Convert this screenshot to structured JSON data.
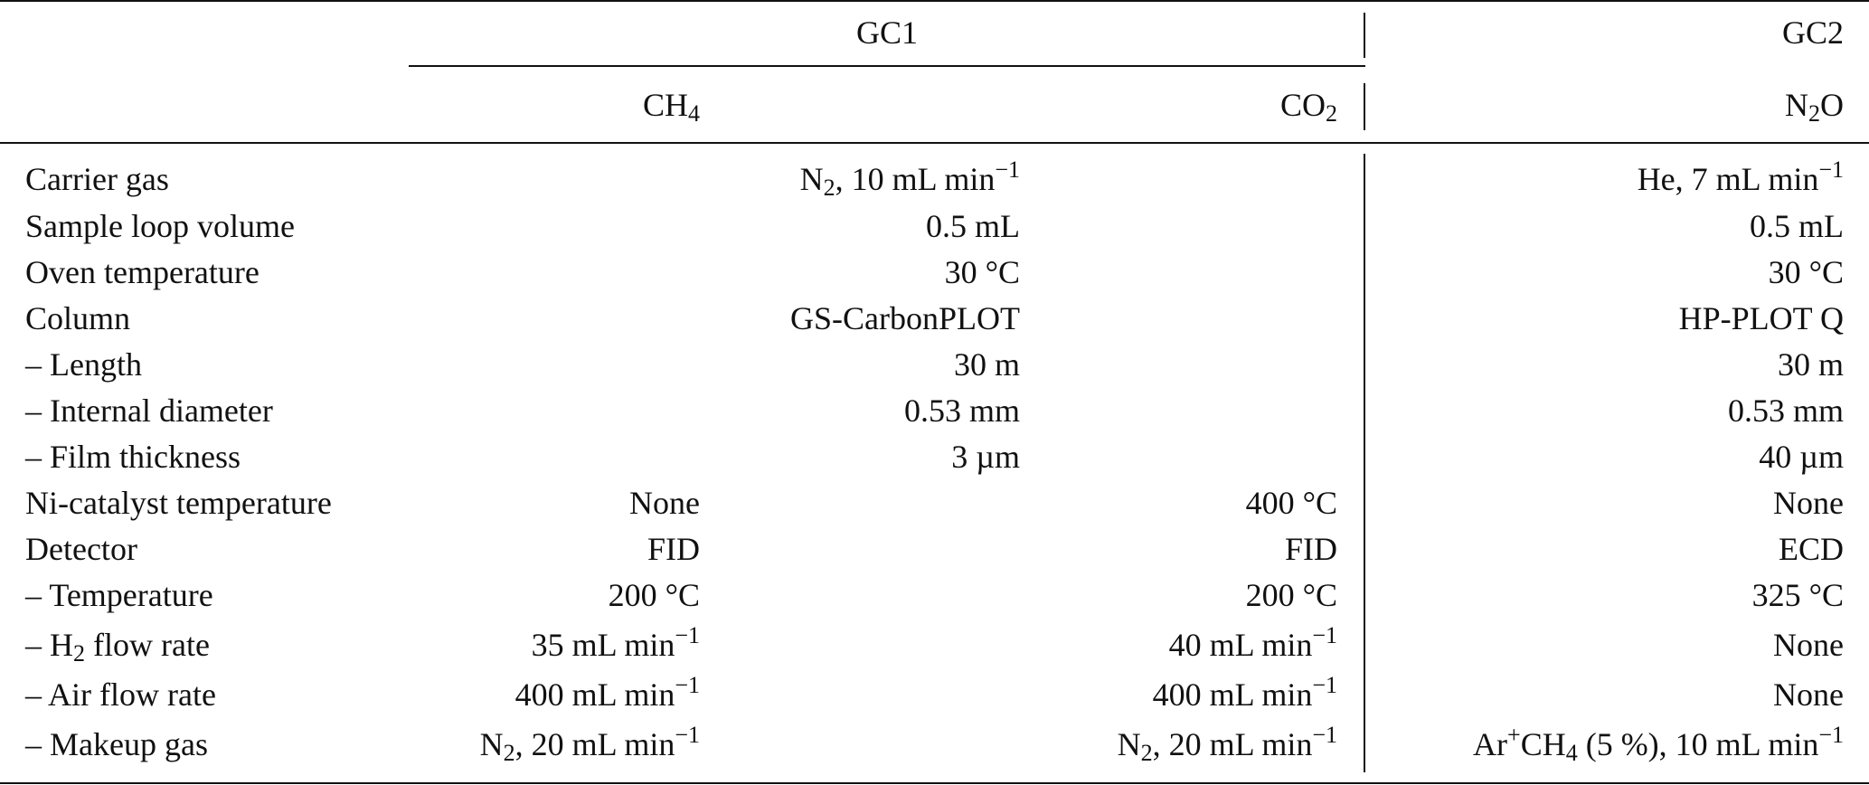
{
  "header": {
    "gc1": "GC1",
    "gc2": "GC2",
    "ch4": {
      "base": "CH",
      "sub": "4"
    },
    "co2": {
      "base": "CO",
      "sub": "2"
    },
    "n2o": {
      "pre": "N",
      "sub": "2",
      "post": "O"
    }
  },
  "rows": [
    {
      "label": "Carrier gas",
      "gc1": {
        "pre": "N",
        "sub": "2",
        "mid": ", 10 mL min",
        "sup": "−1"
      },
      "gc2": {
        "pre": "He, 7 mL min",
        "sup": "−1"
      }
    },
    {
      "label": "Sample loop volume",
      "gc1": "0.5 mL",
      "gc2": "0.5 mL"
    },
    {
      "label": "Oven temperature",
      "gc1": "30 °C",
      "gc2": "30 °C"
    },
    {
      "label": "Column",
      "gc1": "GS-CarbonPLOT",
      "gc2": "HP-PLOT Q"
    },
    {
      "label": "– Length",
      "gc1": "30 m",
      "gc2": "30 m"
    },
    {
      "label": "– Internal diameter",
      "gc1": "0.53 mm",
      "gc2": "0.53 mm"
    },
    {
      "label": "– Film thickness",
      "gc1": "3 µm",
      "gc2": "40 µm"
    },
    {
      "label": "Ni-catalyst temperature",
      "ch4": "None",
      "co2": "400 °C",
      "gc2": "None"
    },
    {
      "label": "Detector",
      "ch4": "FID",
      "co2": "FID",
      "gc2": "ECD"
    },
    {
      "label": "– Temperature",
      "ch4": "200 °C",
      "co2": "200 °C",
      "gc2": "325 °C"
    },
    {
      "label": {
        "pre": "– H",
        "sub": "2",
        "post": " flow rate"
      },
      "ch4": {
        "pre": "35 mL min",
        "sup": "−1"
      },
      "co2": {
        "pre": "40 mL min",
        "sup": "−1"
      },
      "gc2": "None"
    },
    {
      "label": "– Air flow rate",
      "ch4": {
        "pre": "400 mL min",
        "sup": "−1"
      },
      "co2": {
        "pre": "400 mL min",
        "sup": "−1"
      },
      "gc2": "None"
    },
    {
      "label": "– Makeup gas",
      "ch4": {
        "pre": "N",
        "sub": "2",
        "mid": ", 20 mL min",
        "sup": "−1"
      },
      "co2": {
        "pre": "N",
        "sub": "2",
        "mid": ", 20 mL min",
        "sup": "−1"
      },
      "gc2": {
        "pre": "Ar",
        "sup1": "+",
        "mid": "CH",
        "sub": "4",
        "post": " (5 %), 10 mL min",
        "sup": "−1"
      }
    }
  ]
}
